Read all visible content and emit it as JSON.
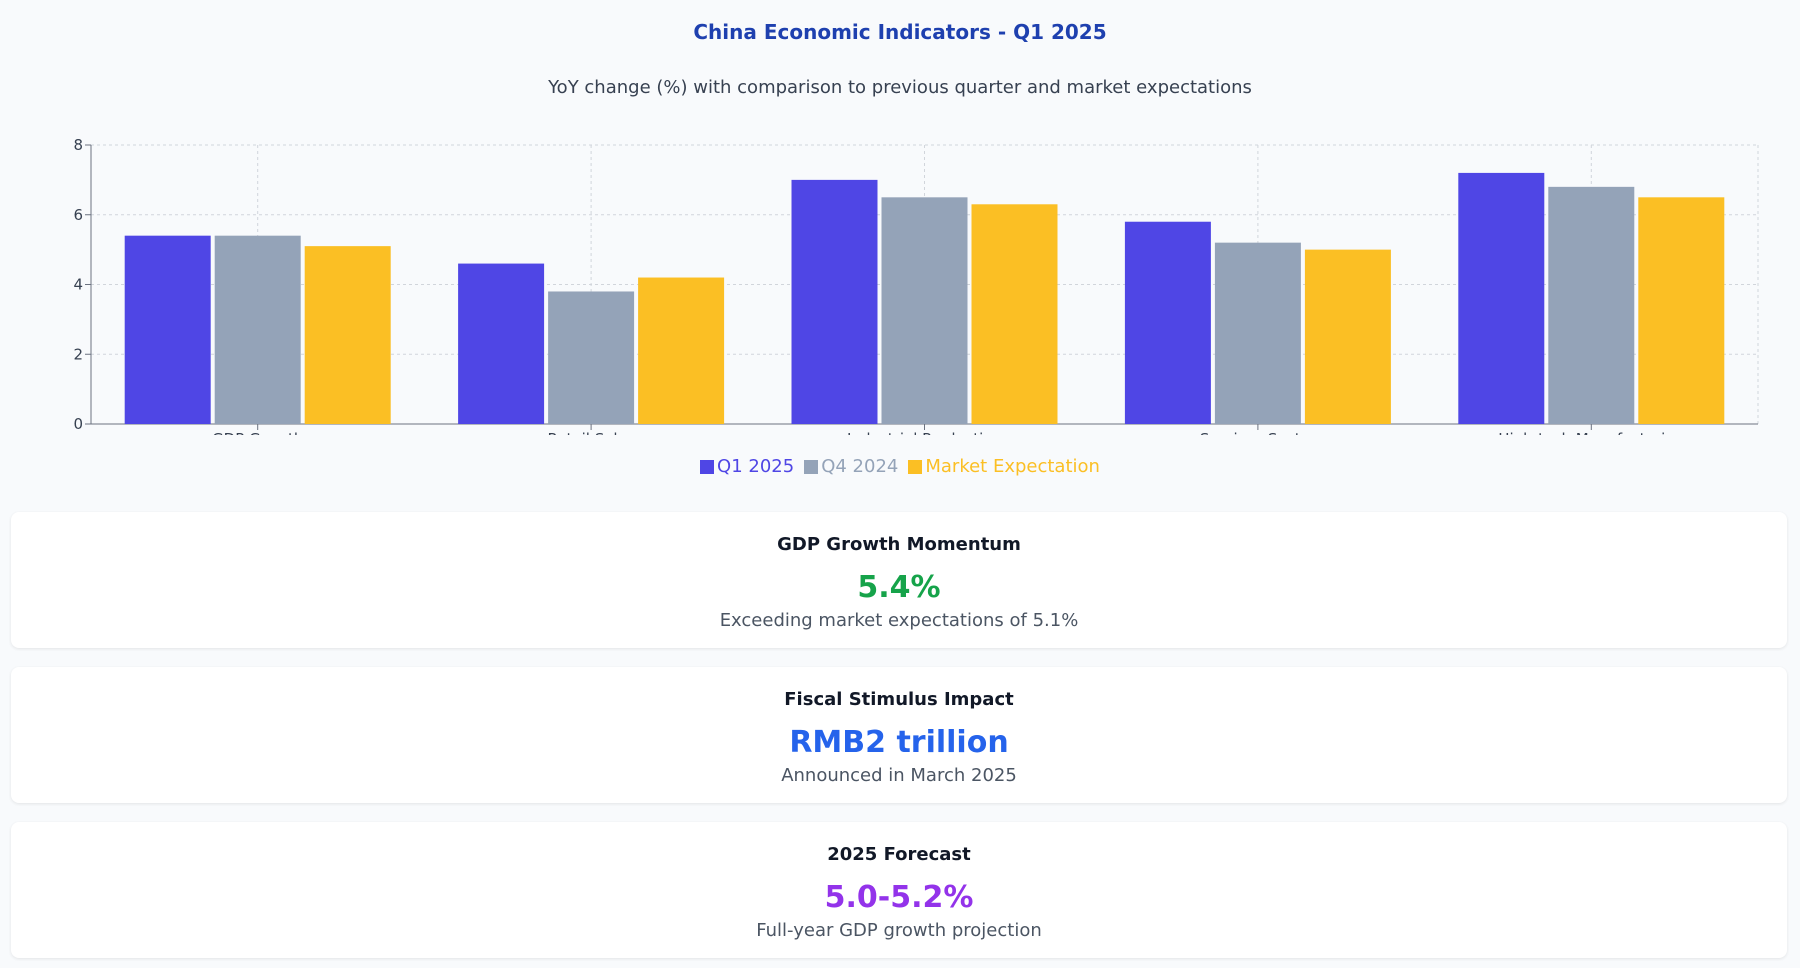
{
  "chart_data": {
    "type": "bar",
    "title": "China Economic Indicators - Q1 2025",
    "subtitle": "YoY change (%) with comparison to previous quarter and market expectations",
    "categories": [
      "GDP Growth",
      "Retail Sales",
      "Industrial Production",
      "Services Sector",
      "High-tech Manufacturing"
    ],
    "series": [
      {
        "name": "Q1 2025",
        "color": "#4f46e5",
        "values": [
          5.4,
          4.6,
          7.0,
          5.8,
          7.2
        ]
      },
      {
        "name": "Q4 2024",
        "color": "#94a3b8",
        "values": [
          5.4,
          3.8,
          6.5,
          5.2,
          6.8
        ]
      },
      {
        "name": "Market Expectation",
        "color": "#fbbf24",
        "values": [
          5.1,
          4.2,
          6.3,
          5.0,
          6.5
        ]
      }
    ],
    "ylim": [
      0,
      8
    ],
    "yticks": [
      0,
      2,
      4,
      6,
      8
    ],
    "grid": true,
    "legend": "bottom-center"
  },
  "cards": [
    {
      "title": "GDP Growth Momentum",
      "value": "5.4%",
      "value_color": "#16a34a",
      "description": "Exceeding market expectations of 5.1%"
    },
    {
      "title": "Fiscal Stimulus Impact",
      "value": "RMB2 trillion",
      "value_color": "#2563eb",
      "description": "Announced in March 2025"
    },
    {
      "title": "2025 Forecast",
      "value": "5.0-5.2%",
      "value_color": "#9333ea",
      "description": "Full-year GDP growth projection"
    }
  ]
}
